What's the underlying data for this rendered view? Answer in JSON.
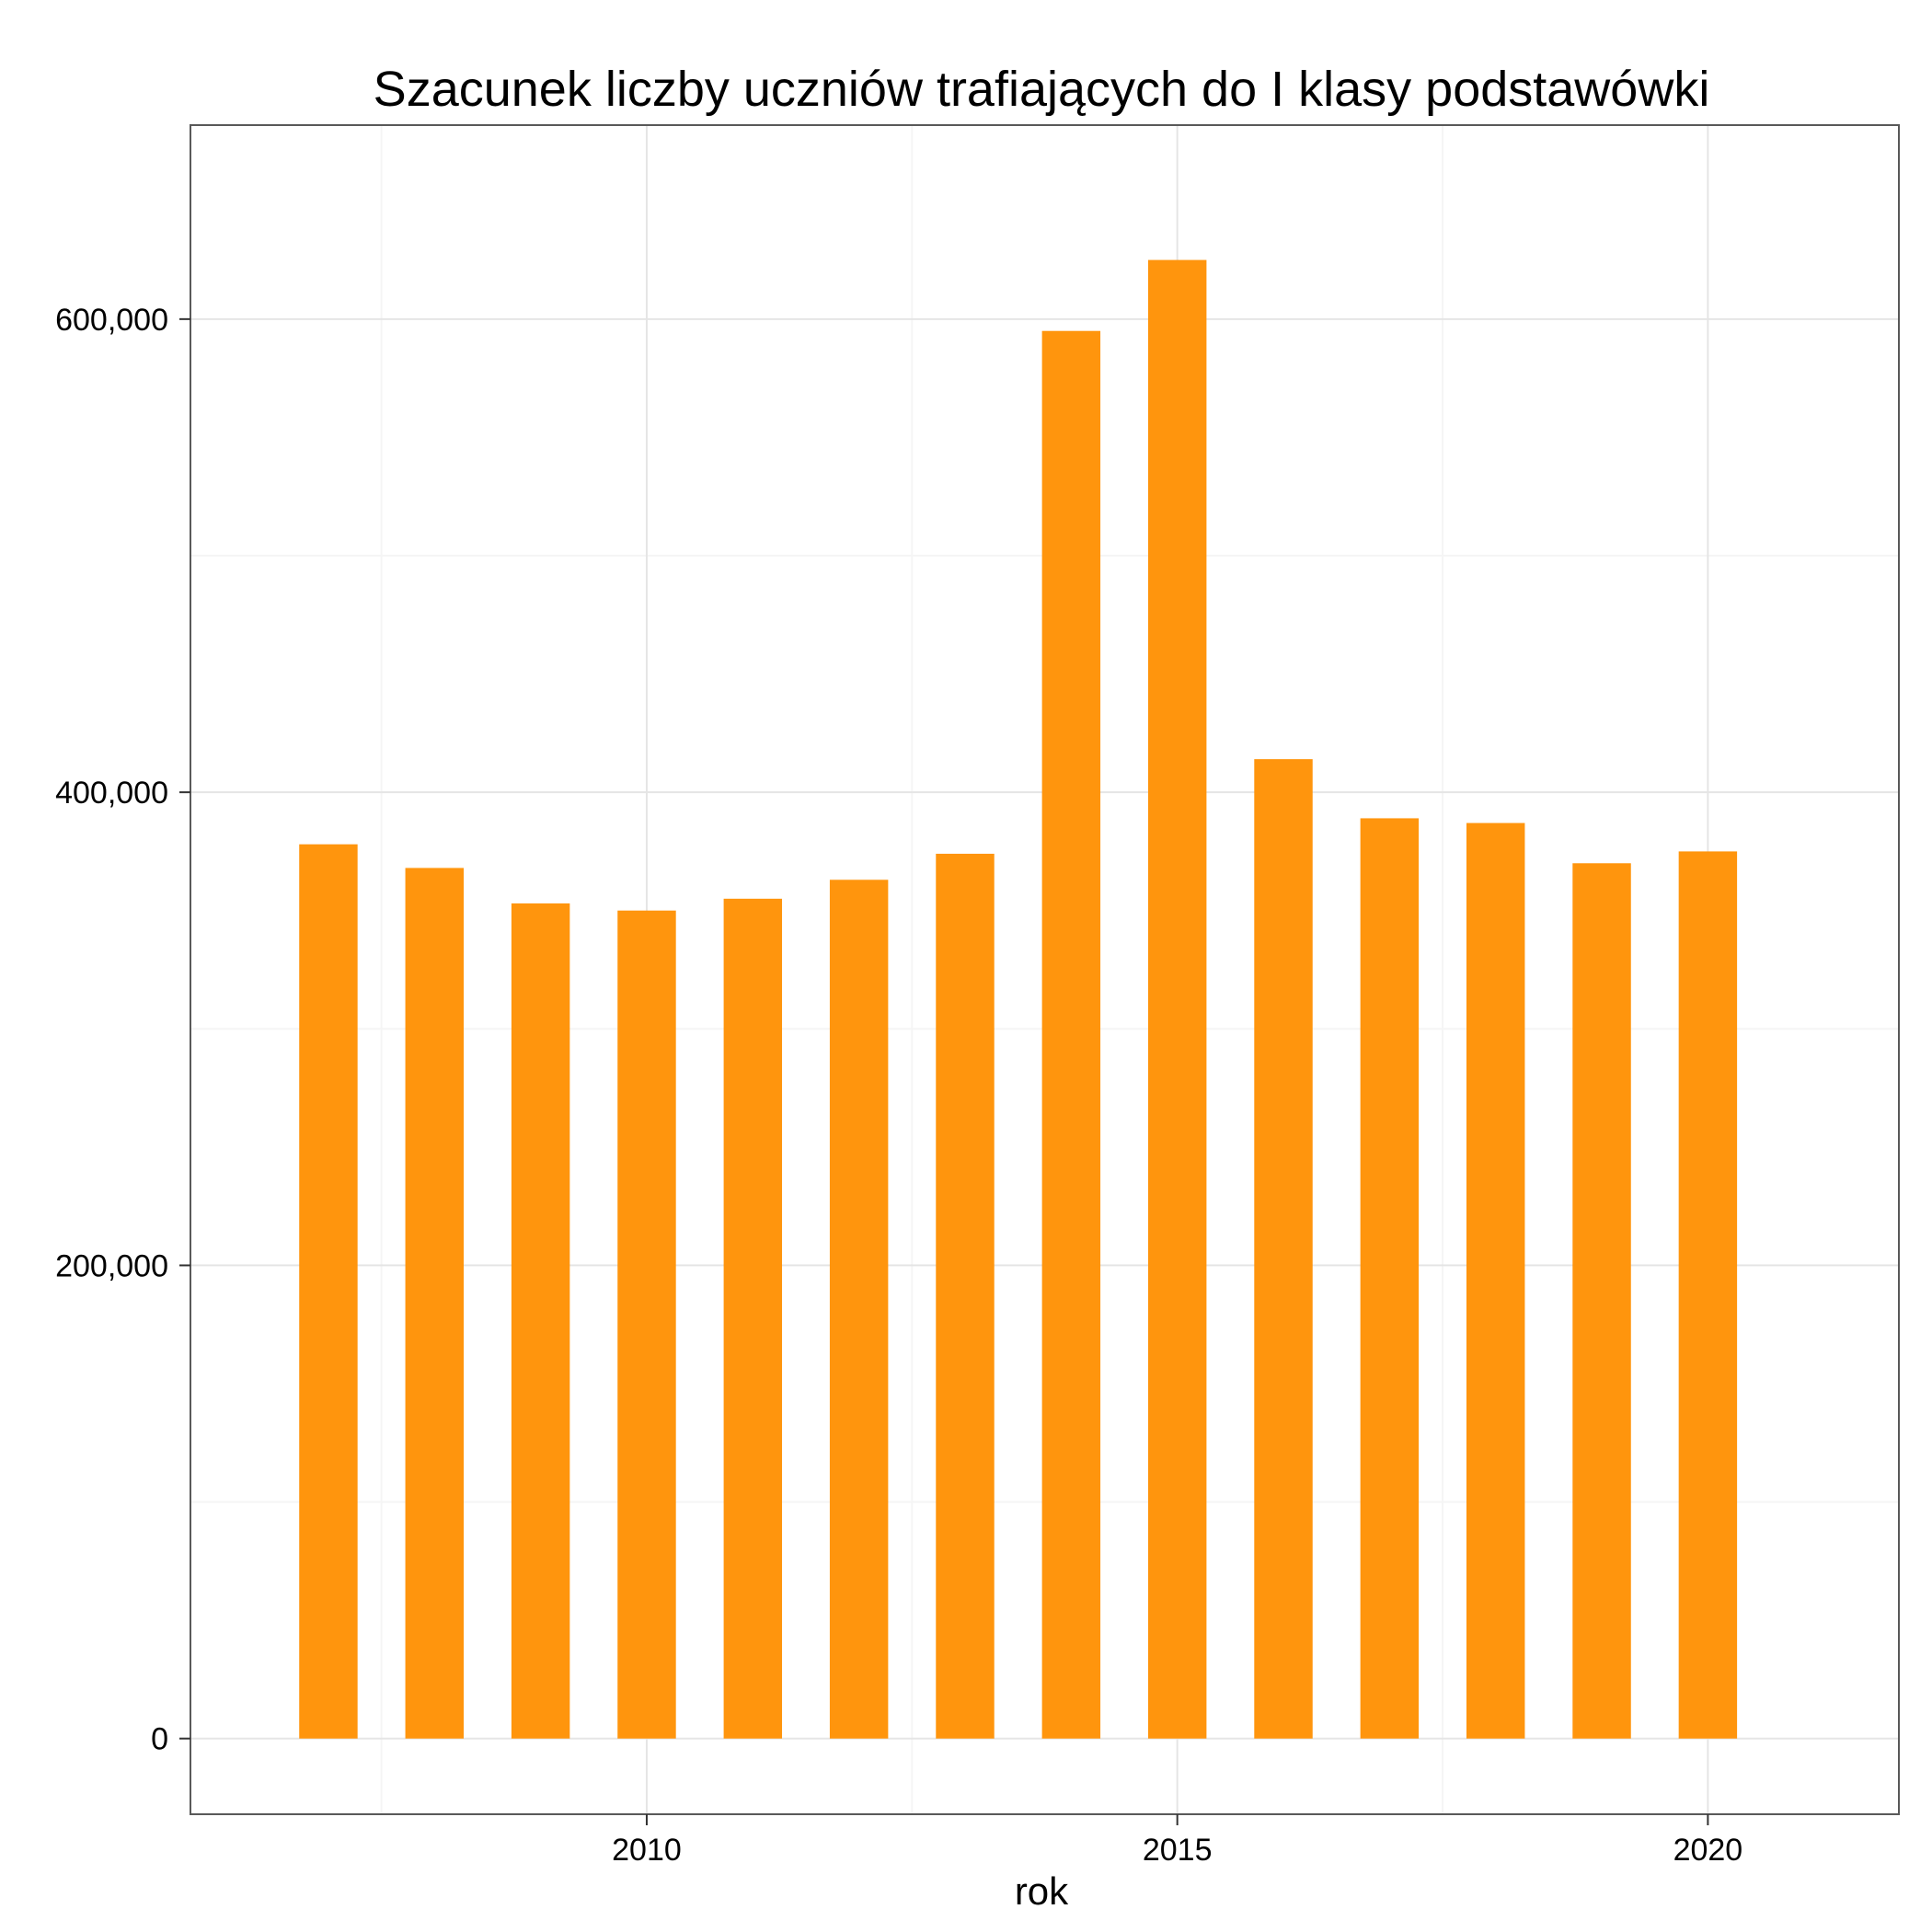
{
  "chart_data": {
    "type": "bar",
    "title": "Szacunek liczby uczniów trafiających do I klasy podstawówki",
    "xlabel": "rok",
    "ylabel": "",
    "x": [
      2007,
      2008,
      2009,
      2010,
      2011,
      2012,
      2013,
      2014,
      2015,
      2016,
      2017,
      2018,
      2019,
      2020
    ],
    "values": [
      378000,
      368000,
      353000,
      350000,
      355000,
      363000,
      374000,
      595000,
      625000,
      414000,
      389000,
      387000,
      370000,
      375000
    ],
    "xlim": [
      2005.7,
      2021.8
    ],
    "ylim": [
      -32000,
      682000
    ],
    "x_ticks": [
      2010,
      2015,
      2020
    ],
    "x_tick_labels": [
      "2010",
      "2015",
      "2020"
    ],
    "y_ticks": [
      0,
      200000,
      400000,
      600000
    ],
    "y_tick_labels": [
      "0",
      "200,000",
      "400,000",
      "600,000"
    ],
    "grid": true,
    "bar_color": "#FF950D",
    "panel_border_color": "#595959",
    "grid_major_color": "#E5E5E5",
    "grid_minor_color": "#F5F5F5"
  }
}
